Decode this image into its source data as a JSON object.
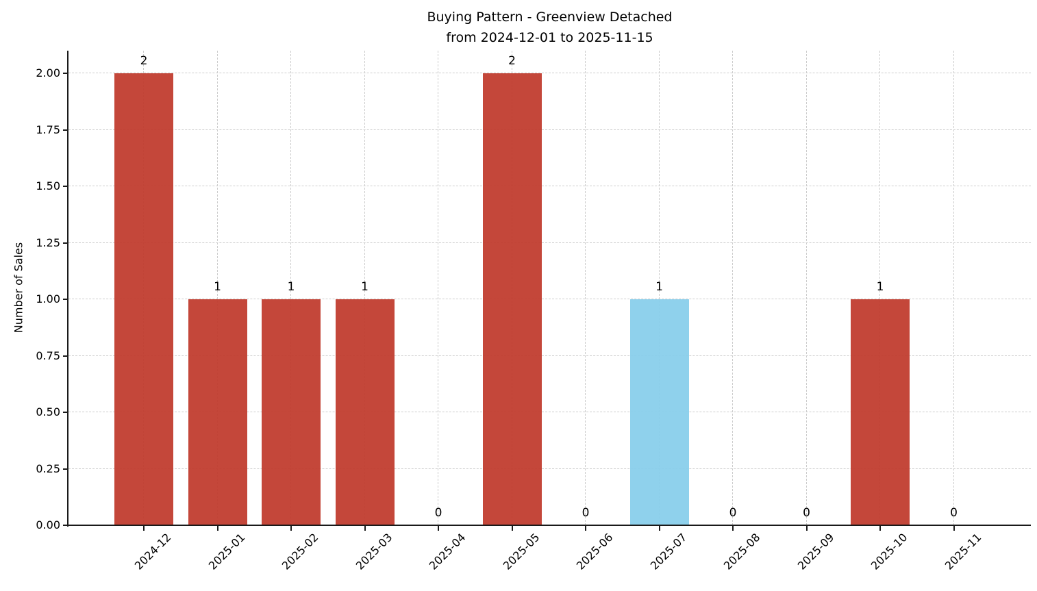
{
  "chart_data": {
    "type": "bar",
    "title": "Buying Pattern - Greenview Detached",
    "subtitle": "from 2024-12-01 to 2025-11-15",
    "xlabel": "",
    "ylabel": "Number of Sales",
    "categories": [
      "2024-12",
      "2025-01",
      "2025-02",
      "2025-03",
      "2025-04",
      "2025-05",
      "2025-06",
      "2025-07",
      "2025-08",
      "2025-09",
      "2025-10",
      "2025-11"
    ],
    "values": [
      2,
      1,
      1,
      1,
      0,
      2,
      0,
      1,
      0,
      0,
      1,
      0
    ],
    "value_labels": [
      "2",
      "1",
      "1",
      "1",
      "0",
      "2",
      "0",
      "1",
      "0",
      "0",
      "1",
      "0"
    ],
    "bar_colors": [
      "#c0392b",
      "#c0392b",
      "#c0392b",
      "#c0392b",
      "#c0392b",
      "#c0392b",
      "#c0392b",
      "#87ceeb",
      "#c0392b",
      "#c0392b",
      "#c0392b",
      "#c0392b"
    ],
    "yticks": [
      0.0,
      0.25,
      0.5,
      0.75,
      1.0,
      1.25,
      1.5,
      1.75,
      2.0
    ],
    "ytick_labels": [
      "0.00",
      "0.25",
      "0.50",
      "0.75",
      "1.00",
      "1.25",
      "1.50",
      "1.75",
      "2.00"
    ],
    "ylim": [
      0,
      2.1
    ],
    "grid": "dashed",
    "legend": null,
    "colors": {
      "bar_default": "#c0392b",
      "bar_highlight": "#87ceeb",
      "grid": "#cccccc",
      "axis": "#1a1a1a",
      "text": "#000000",
      "background": "#ffffff"
    }
  }
}
